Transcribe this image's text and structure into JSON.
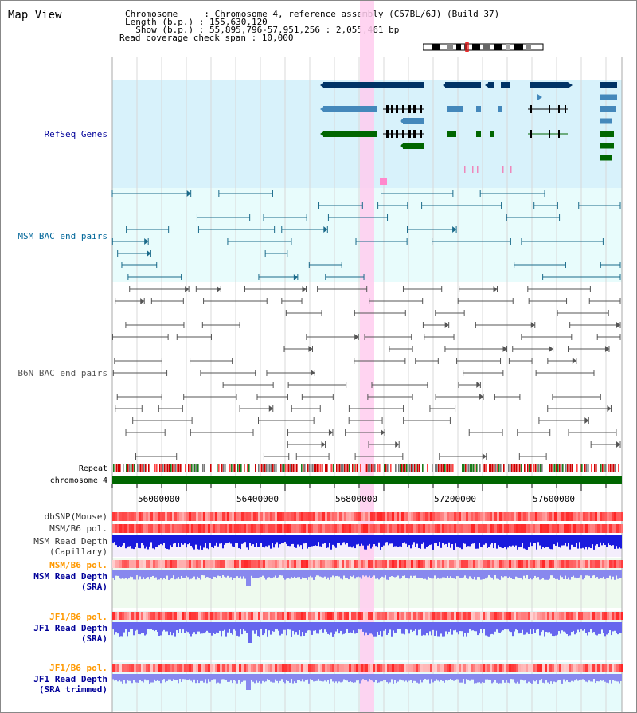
{
  "header": {
    "title": "Map View",
    "line1": "Chromosome     : Chromosome 4, reference assembly (C57BL/6J) (Build 37)",
    "line2": "Length (b.p.) : 155,630,120",
    "line3": "  Show (b.p.) : 55,895,796-57,951,256 : 2,055,461 bp",
    "line4": "Read coverage check span : 10,000"
  },
  "tracks": {
    "refseq": "RefSeq Genes",
    "msm_bac": "MSM BAC end pairs",
    "b6n_bac": "B6N BAC end pairs",
    "repeat": "Repeat",
    "chromosome": "chromosome 4",
    "dbsnp": "dbSNP(Mouse)",
    "msm_b6_pol_1": "MSM/B6 pol.",
    "msm_depth_cap_1": "MSM Read Depth",
    "msm_depth_cap_2": "(Capillary)",
    "msm_b6_pol_2": "MSM/B6 pol.",
    "msm_depth_sra_1": "MSM Read Depth",
    "msm_depth_sra_2": "(SRA)",
    "jf1_b6_pol_1": "JF1/B6 pol.",
    "jf1_depth_sra_1": "JF1 Read Depth",
    "jf1_depth_sra_2": "(SRA)",
    "jf1_b6_pol_2": "JF1/B6 pol.",
    "jf1_depth_trim_1": "JF1 Read Depth",
    "jf1_depth_trim_2": "(SRA trimmed)"
  },
  "axis": {
    "ticks": [
      "56000000",
      "56400000",
      "56800000",
      "57200000",
      "57600000"
    ]
  },
  "colors": {
    "refseq_label": "#000099",
    "msm_label": "#006699",
    "b6n_label": "#555555",
    "orange_label": "#ff9900",
    "blue_label": "#000099",
    "highlight": "#ffccee",
    "gene_dark": "#003366",
    "gene_mid": "#4488bb",
    "gene_green": "#006600",
    "chrom_green": "#006600"
  }
}
